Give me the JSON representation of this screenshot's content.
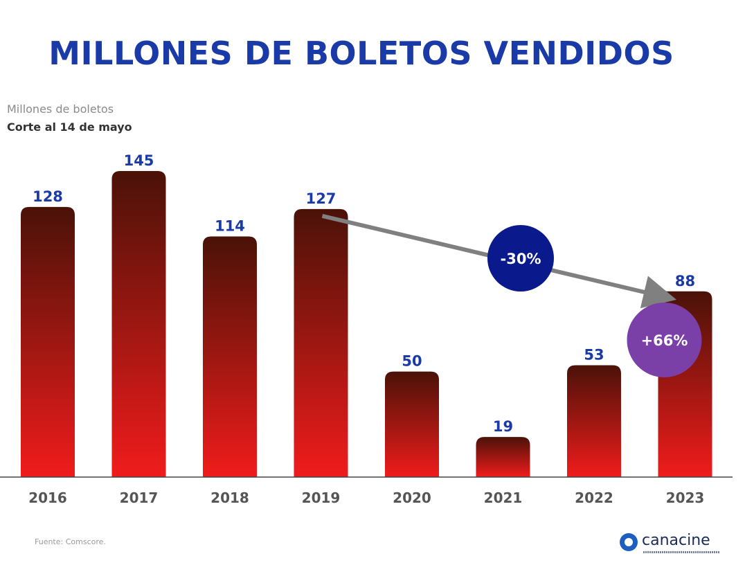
{
  "header": {
    "title": "MILLONES DE BOLETOS VENDIDOS",
    "subtitle": "Millones de boletos",
    "note": "Corte al 14 de mayo"
  },
  "footer": {
    "source": "Fuente: Comscore.",
    "logo_text": "canacine"
  },
  "colors": {
    "title": "#1a3aa8",
    "bar_top": "#4a1208",
    "bar_bottom": "#f01c1c",
    "value_label": "#1a3aa8",
    "year_label": "#555555",
    "arrow": "#808080",
    "badge_decline": "#0a1a8c",
    "badge_growth": "#7b3fa8"
  },
  "chart_data": {
    "type": "bar",
    "categories": [
      "2016",
      "2017",
      "2018",
      "2019",
      "2020",
      "2021",
      "2022",
      "2023"
    ],
    "values": [
      128,
      145,
      114,
      127,
      50,
      19,
      53,
      88
    ],
    "ylim": [
      0,
      145
    ],
    "grid": false,
    "annotations": [
      {
        "label": "-30%",
        "from": "2019",
        "to": "2023"
      },
      {
        "label": "+66%",
        "category": "2023"
      }
    ]
  }
}
